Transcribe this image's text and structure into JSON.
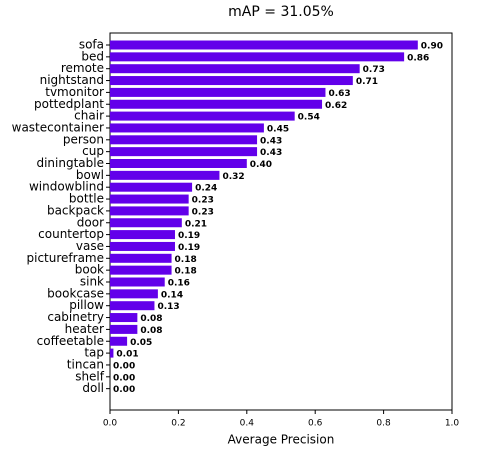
{
  "chart_data": {
    "type": "barh",
    "title": "mAP = 31.05%",
    "xlabel": "Average Precision",
    "categories": [
      "sofa",
      "bed",
      "remote",
      "nightstand",
      "tvmonitor",
      "pottedplant",
      "chair",
      "wastecontainer",
      "person",
      "cup",
      "diningtable",
      "bowl",
      "windowblind",
      "bottle",
      "backpack",
      "door",
      "countertop",
      "vase",
      "pictureframe",
      "book",
      "sink",
      "bookcase",
      "pillow",
      "cabinetry",
      "heater",
      "coffeetable",
      "tap",
      "tincan",
      "shelf",
      "doll"
    ],
    "values": [
      0.9,
      0.86,
      0.73,
      0.71,
      0.63,
      0.62,
      0.54,
      0.45,
      0.43,
      0.43,
      0.4,
      0.32,
      0.24,
      0.23,
      0.23,
      0.21,
      0.19,
      0.19,
      0.18,
      0.18,
      0.16,
      0.14,
      0.13,
      0.08,
      0.08,
      0.05,
      0.01,
      0,
      0,
      0
    ],
    "value_labels": [
      "0.90",
      "0.86",
      "0.73",
      "0.71",
      "0.63",
      "0.62",
      "0.54",
      "0.45",
      "0.43",
      "0.43",
      "0.40",
      "0.32",
      "0.24",
      "0.23",
      "0.23",
      "0.21",
      "0.19",
      "0.19",
      "0.18",
      "0.18",
      "0.16",
      "0.14",
      "0.13",
      "0.08",
      "0.08",
      "0.05",
      "0.01",
      "0.00",
      "0.00",
      "0.00"
    ],
    "color": "#6200ea",
    "xlim": [
      0,
      1
    ],
    "xticks": [
      {
        "value": 0,
        "label": "0.0"
      },
      0.2,
      0.4,
      0.6,
      0.8,
      {
        "value": 1,
        "label": "1.0"
      }
    ]
  }
}
